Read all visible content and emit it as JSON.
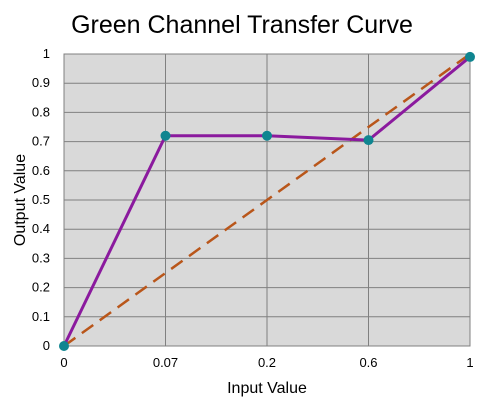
{
  "chart_data": {
    "type": "line",
    "title": "Green Channel Transfer Curve",
    "xlabel": "Input Value",
    "ylabel": "Output Value",
    "x_categories": [
      "0",
      "0.07",
      "0.2",
      "0.6",
      "1"
    ],
    "y_ticks": [
      "0",
      "0.1",
      "0.2",
      "0.3",
      "0.4",
      "0.5",
      "0.6",
      "0.7",
      "0.8",
      "0.9",
      "1"
    ],
    "ylim": [
      0,
      1
    ],
    "grid": true,
    "series": [
      {
        "values": [
          0.0,
          0.72,
          0.72,
          0.705,
          0.99
        ],
        "color": "#8b1a9e",
        "marker_color": "#0f8590",
        "style": "solid"
      },
      {
        "values": [
          0.0,
          0.25,
          0.5,
          0.75,
          1.0
        ],
        "color": "#b9561a",
        "style": "dashed"
      }
    ],
    "plot_background": "#d9d9d9"
  }
}
